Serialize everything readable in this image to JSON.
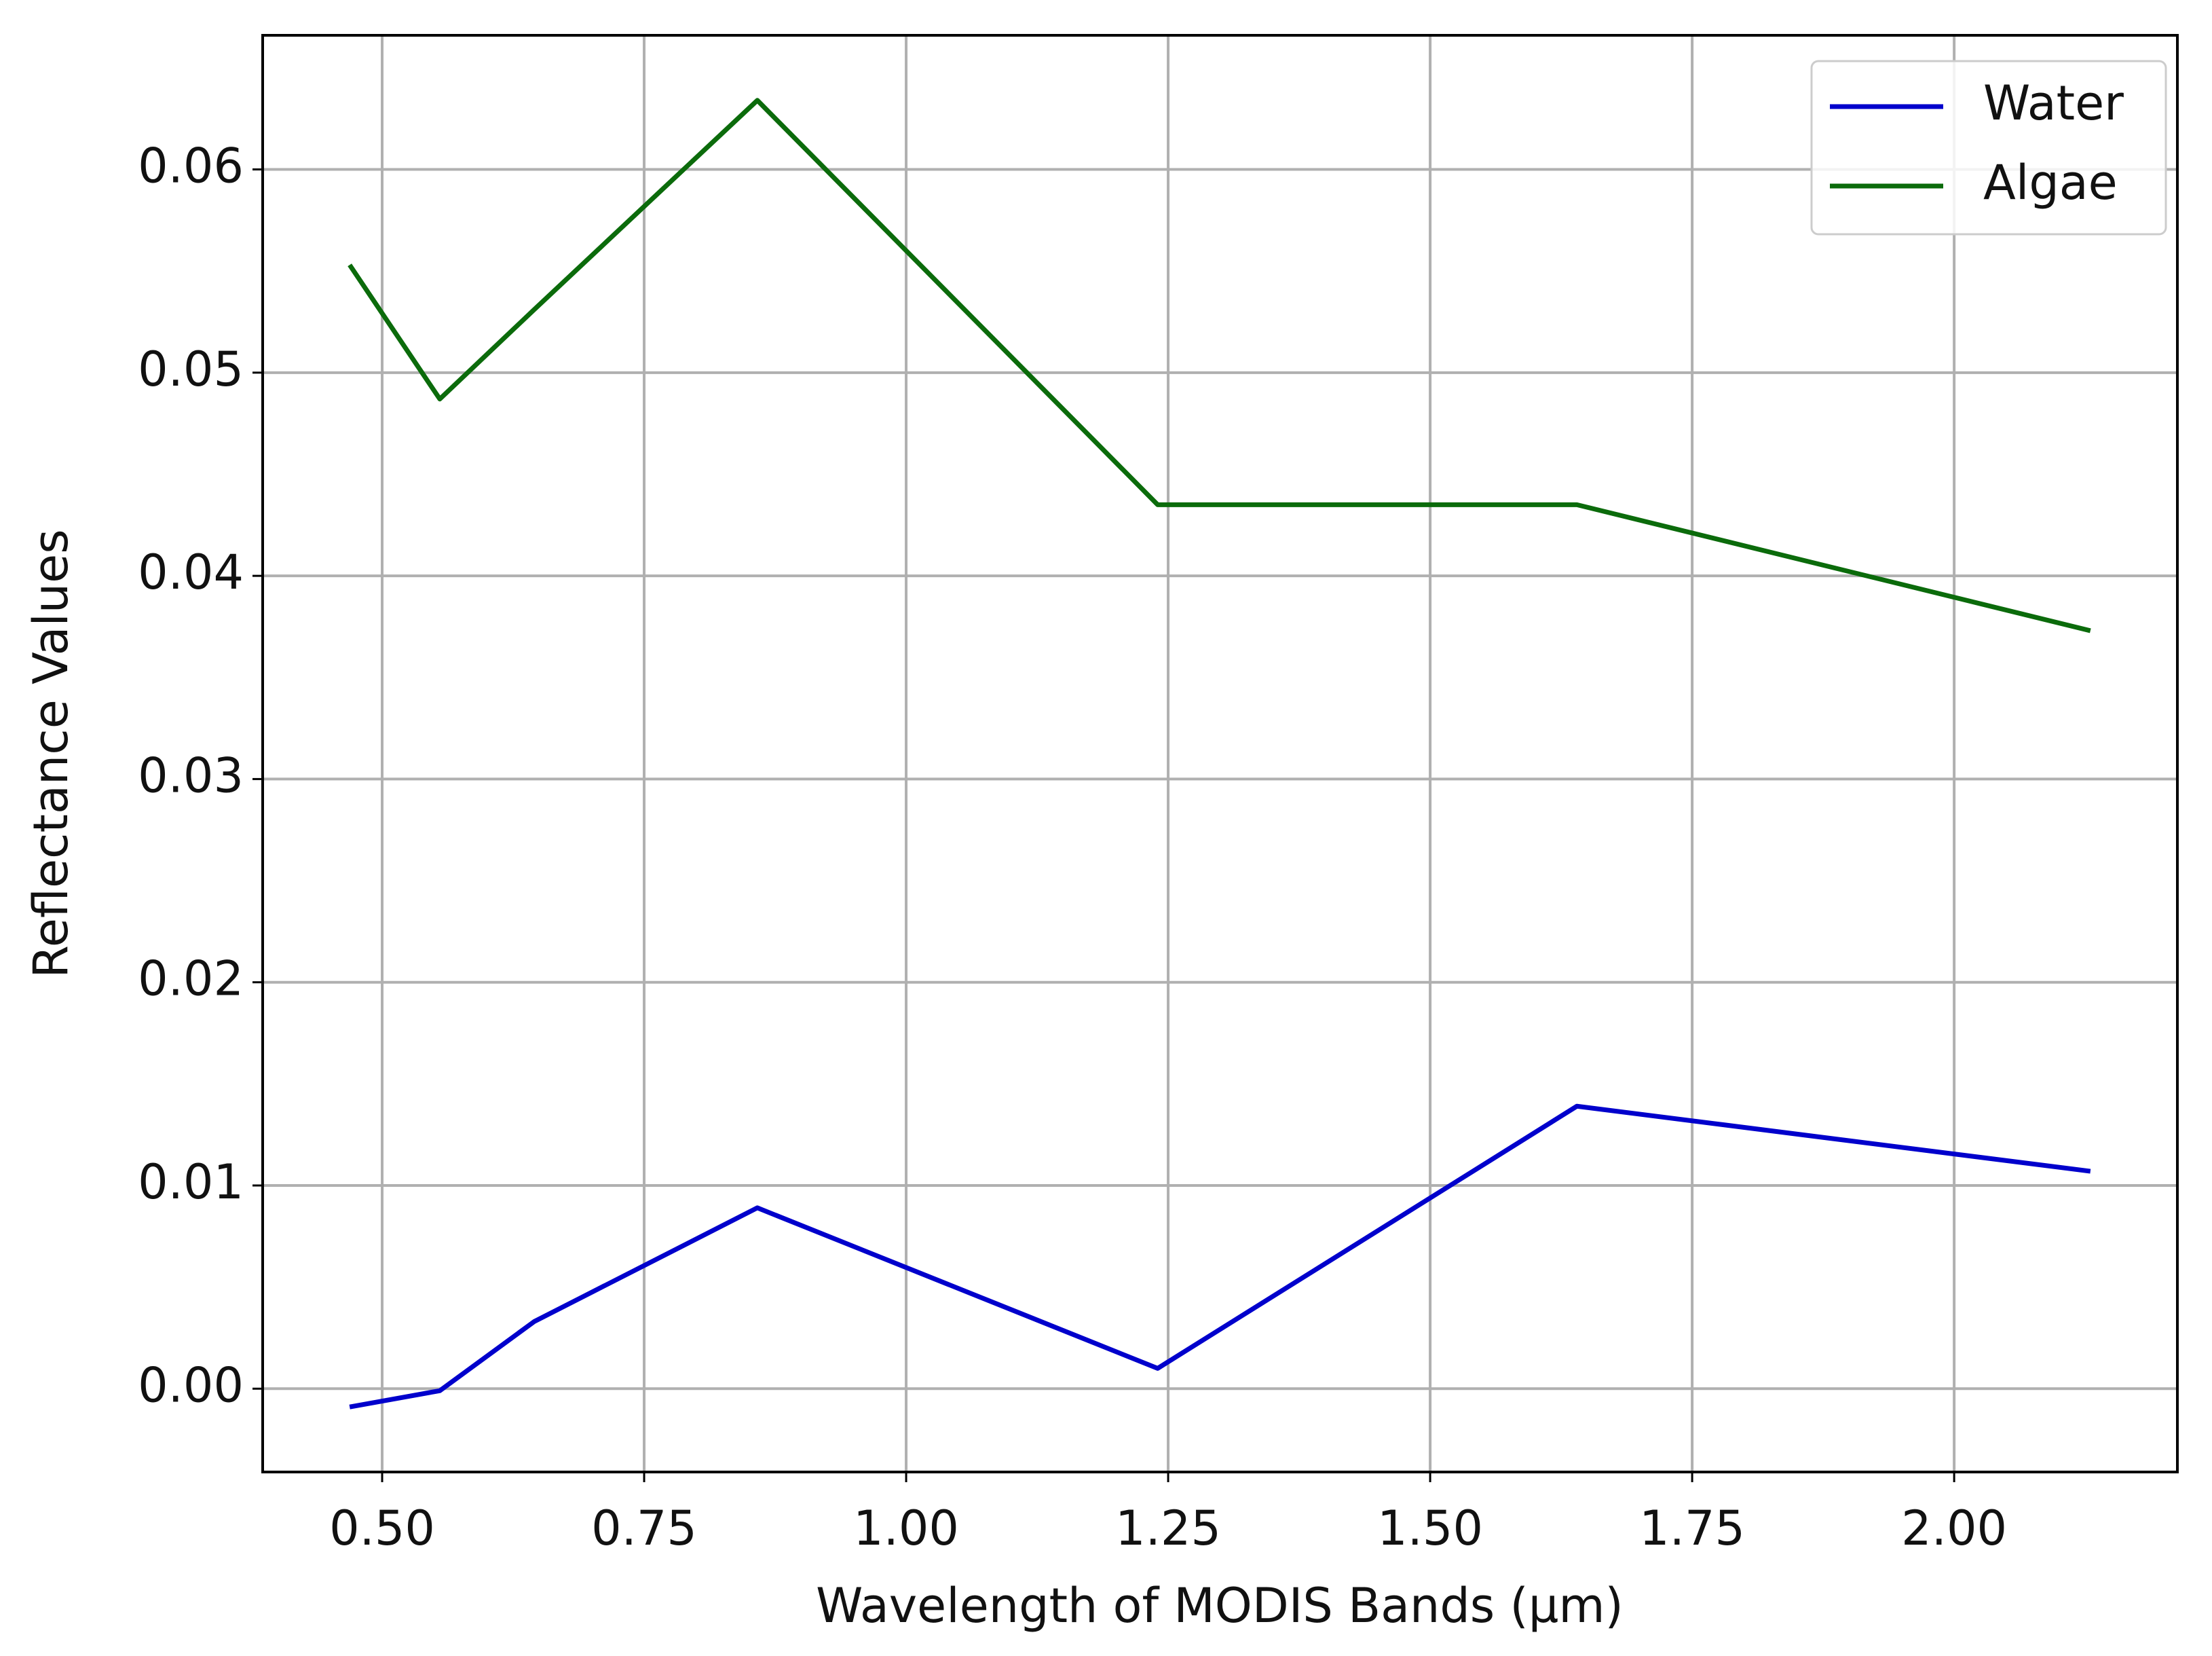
{
  "chart_data": {
    "type": "line",
    "xlabel": "Wavelength of MODIS Bands (µm)",
    "ylabel": "Reflectance Values",
    "x": [
      0.469,
      0.555,
      0.645,
      0.858,
      1.24,
      1.64,
      2.13
    ],
    "series": [
      {
        "name": "Water",
        "color": "#0000cc",
        "values": [
          -0.0009,
          -0.0001,
          0.0033,
          0.0089,
          0.001,
          0.0139,
          0.0107
        ]
      },
      {
        "name": "Algae",
        "color": "#0b6b0b",
        "values": [
          0.0553,
          0.0487,
          0.0531,
          0.0634,
          0.0435,
          0.0435,
          0.0373
        ]
      }
    ],
    "xlim": [
      0.386,
      2.213
    ],
    "ylim": [
      -0.0041,
      0.0666
    ],
    "xticks": [
      {
        "value": 0.5,
        "label": "0.50"
      },
      0.75,
      {
        "value": 1,
        "label": "1.00"
      },
      1.25,
      {
        "value": 1.5,
        "label": "1.50"
      },
      1.75,
      {
        "value": 2,
        "label": "2.00"
      }
    ],
    "yticks": [
      {
        "value": 0,
        "label": "0.00"
      },
      0.01,
      0.02,
      0.03,
      0.04,
      0.05,
      0.06
    ],
    "grid": true,
    "legend": "upper right"
  }
}
